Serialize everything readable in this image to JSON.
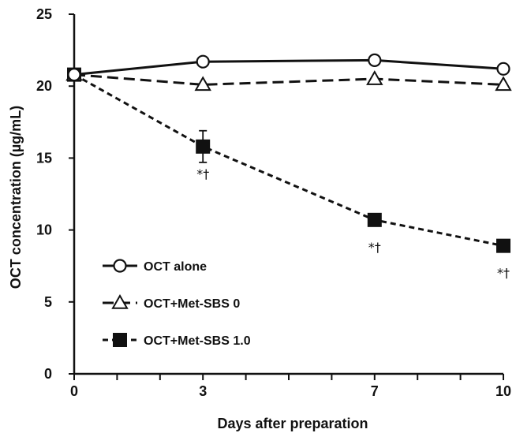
{
  "chart_data": {
    "type": "line",
    "title": "",
    "xlabel": "Days after preparation",
    "ylabel": "OCT concentration (µg/mL)",
    "xlim": [
      0,
      10
    ],
    "ylim": [
      0,
      25
    ],
    "x_ticks": [
      "0",
      "3",
      "7",
      "10"
    ],
    "x_minor_ticks": [
      1,
      2,
      4,
      5,
      6,
      8,
      9
    ],
    "y_ticks": [
      "0",
      "5",
      "10",
      "15",
      "20",
      "25"
    ],
    "legend_position": "bottom-left",
    "grid": false,
    "series": [
      {
        "name": "OCT alone",
        "marker": "open-circle",
        "line": "solid",
        "color": "#111111",
        "x": [
          0,
          3,
          7,
          10
        ],
        "values": [
          20.8,
          21.7,
          21.8,
          21.2
        ]
      },
      {
        "name": "OCT+Met-SBS 0",
        "marker": "open-triangle",
        "line": "long-dash",
        "color": "#111111",
        "x": [
          0,
          3,
          7,
          10
        ],
        "values": [
          20.8,
          20.1,
          20.5,
          20.1
        ]
      },
      {
        "name": "OCT+Met-SBS 1.0",
        "marker": "filled-square",
        "line": "short-dash",
        "color": "#111111",
        "x": [
          0,
          3,
          7,
          10
        ],
        "values": [
          20.8,
          15.8,
          10.7,
          8.9
        ],
        "error": [
          0.3,
          1.1,
          0,
          0
        ]
      }
    ],
    "annotations": [
      {
        "text": "*†",
        "x": 3,
        "series": "OCT+Met-SBS 1.0"
      },
      {
        "text": "*†",
        "x": 7,
        "series": "OCT+Met-SBS 1.0"
      },
      {
        "text": "*†",
        "x": 10,
        "series": "OCT+Met-SBS 1.0"
      }
    ]
  }
}
